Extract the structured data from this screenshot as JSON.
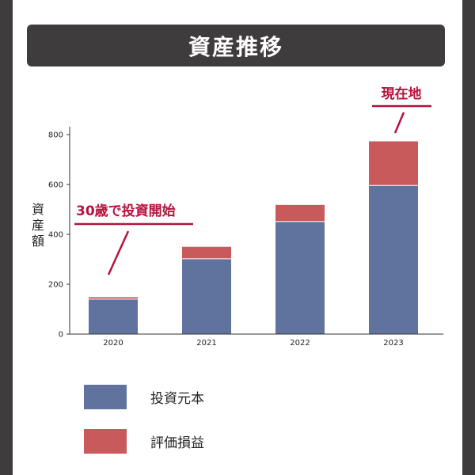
{
  "title": "資産推移",
  "colors": {
    "principal": "#5f739e",
    "gain": "#c85a5c",
    "accent": "#b5123c",
    "header_bg": "#3f3c3e"
  },
  "chart_data": {
    "type": "bar",
    "stacked": true,
    "categories": [
      "2020",
      "2021",
      "2022",
      "2023"
    ],
    "series": [
      {
        "name": "投資元本",
        "values": [
          140,
          302,
          451,
          596
        ]
      },
      {
        "name": "評価損益",
        "values": [
          8,
          48,
          67,
          177
        ]
      }
    ],
    "ylabel": "資産額",
    "ylim": [
      0,
      800
    ],
    "yticks": [
      0,
      200,
      400,
      600,
      800
    ],
    "grid": false,
    "legend_position": "bottom"
  },
  "annotations": {
    "start": "30歳で投資開始",
    "now": "現在地"
  },
  "legend": [
    {
      "label": "投資元本",
      "color": "#5f739e"
    },
    {
      "label": "評価損益",
      "color": "#c85a5c"
    }
  ]
}
